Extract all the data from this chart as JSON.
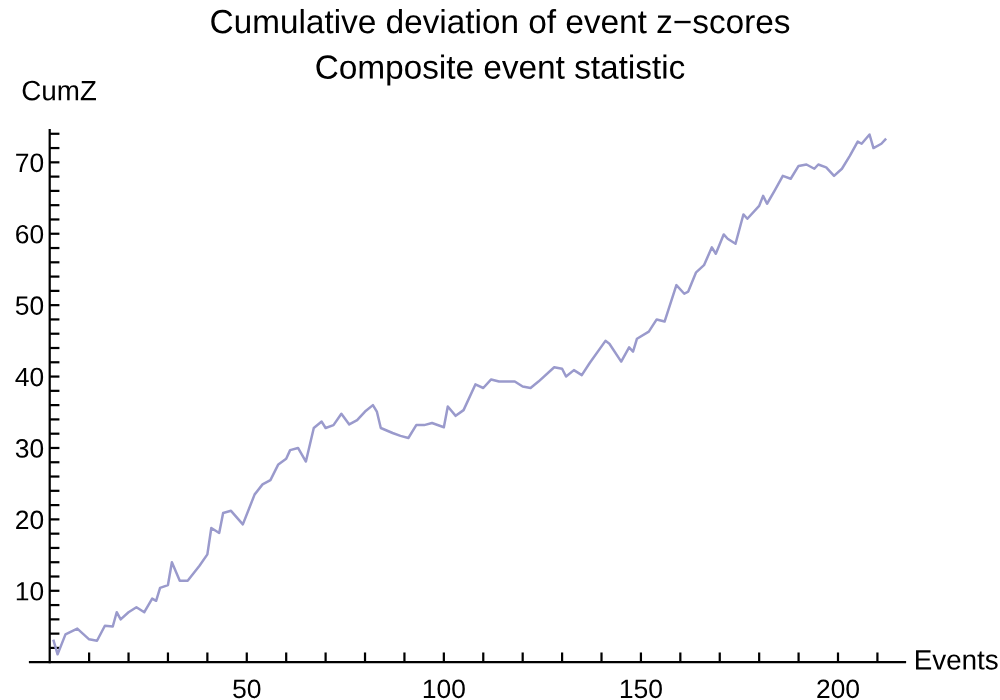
{
  "chart_data": {
    "type": "line",
    "title": "Cumulative deviation of event z−scores",
    "subtitle": "Composite event statistic",
    "xlabel": "Events",
    "ylabel": "CumZ",
    "series": [
      {
        "color": "#9a9acc",
        "x": [
          1,
          2,
          4,
          7,
          10,
          12,
          14,
          16,
          17,
          18,
          20,
          22,
          24,
          26,
          27,
          28,
          30,
          31,
          33,
          35,
          38,
          40,
          41,
          43,
          44,
          46,
          49,
          52,
          54,
          56,
          58,
          60,
          61,
          63,
          65,
          67,
          69,
          70,
          72,
          74,
          76,
          78,
          80,
          82,
          83,
          84,
          87,
          89,
          91,
          93,
          95,
          97,
          100,
          101,
          103,
          105,
          108,
          110,
          112,
          114,
          118,
          120,
          122,
          124,
          128,
          130,
          131,
          133,
          135,
          137,
          141,
          142,
          145,
          147,
          148,
          149,
          152,
          154,
          156,
          159,
          161,
          162,
          164,
          166,
          168,
          169,
          171,
          172,
          174,
          176,
          177,
          180,
          181,
          182,
          184,
          186,
          188,
          190,
          192,
          194,
          195,
          197,
          199,
          201,
          203,
          205,
          206,
          208,
          209,
          211,
          212
        ],
        "values": [
          3.0,
          1.1,
          3.9,
          4.7,
          3.2,
          3.0,
          5.1,
          5.0,
          7.0,
          6.0,
          7.0,
          7.7,
          7.0,
          8.9,
          8.6,
          10.4,
          10.8,
          14.0,
          11.4,
          11.4,
          13.5,
          15.1,
          18.8,
          18.1,
          20.9,
          21.2,
          19.3,
          23.5,
          24.9,
          25.5,
          27.7,
          28.5,
          29.7,
          30.0,
          28.1,
          32.8,
          33.7,
          32.8,
          33.2,
          34.8,
          33.3,
          33.9,
          35.1,
          36.0,
          35.1,
          32.8,
          32.1,
          31.7,
          31.4,
          33.2,
          33.2,
          33.5,
          32.9,
          35.8,
          34.5,
          35.3,
          38.9,
          38.4,
          39.6,
          39.3,
          39.3,
          38.6,
          38.4,
          39.3,
          41.3,
          41.1,
          40.0,
          40.9,
          40.2,
          41.9,
          45.0,
          44.6,
          42.1,
          44.1,
          43.5,
          45.3,
          46.3,
          48.0,
          47.7,
          52.8,
          51.6,
          51.9,
          54.6,
          55.6,
          58.1,
          57.2,
          59.9,
          59.3,
          58.6,
          62.7,
          62.1,
          63.9,
          65.3,
          64.2,
          66.1,
          68.1,
          67.7,
          69.5,
          69.7,
          69.1,
          69.7,
          69.3,
          68.1,
          69.1,
          70.9,
          72.9,
          72.6,
          73.9,
          72.0,
          72.6,
          73.2
        ]
      }
    ],
    "xlim": [
      -5,
      217
    ],
    "ylim": [
      0,
      74.5
    ],
    "xticks": [
      {
        "value": 10,
        "label": null
      },
      {
        "value": 20,
        "label": null
      },
      {
        "value": 30,
        "label": null
      },
      {
        "value": 40,
        "label": null
      },
      50,
      {
        "value": 60,
        "label": null
      },
      {
        "value": 70,
        "label": null
      },
      {
        "value": 80,
        "label": null
      },
      {
        "value": 90,
        "label": null
      },
      100,
      {
        "value": 110,
        "label": null
      },
      {
        "value": 120,
        "label": null
      },
      {
        "value": 130,
        "label": null
      },
      {
        "value": 140,
        "label": null
      },
      150,
      {
        "value": 160,
        "label": null
      },
      {
        "value": 170,
        "label": null
      },
      {
        "value": 180,
        "label": null
      },
      {
        "value": 190,
        "label": null
      },
      200,
      {
        "value": 210,
        "label": null
      }
    ],
    "yticks": [
      {
        "value": 2,
        "label": null
      },
      {
        "value": 4,
        "label": null
      },
      {
        "value": 6,
        "label": null
      },
      {
        "value": 8,
        "label": null
      },
      10,
      {
        "value": 12,
        "label": null
      },
      {
        "value": 14,
        "label": null
      },
      {
        "value": 16,
        "label": null
      },
      {
        "value": 18,
        "label": null
      },
      20,
      {
        "value": 22,
        "label": null
      },
      {
        "value": 24,
        "label": null
      },
      {
        "value": 26,
        "label": null
      },
      {
        "value": 28,
        "label": null
      },
      30,
      {
        "value": 32,
        "label": null
      },
      {
        "value": 34,
        "label": null
      },
      {
        "value": 36,
        "label": null
      },
      {
        "value": 38,
        "label": null
      },
      40,
      {
        "value": 42,
        "label": null
      },
      {
        "value": 44,
        "label": null
      },
      {
        "value": 46,
        "label": null
      },
      {
        "value": 48,
        "label": null
      },
      50,
      {
        "value": 52,
        "label": null
      },
      {
        "value": 54,
        "label": null
      },
      {
        "value": 56,
        "label": null
      },
      {
        "value": 58,
        "label": null
      },
      60,
      {
        "value": 62,
        "label": null
      },
      {
        "value": 64,
        "label": null
      },
      {
        "value": 66,
        "label": null
      },
      {
        "value": 68,
        "label": null
      },
      70,
      {
        "value": 72,
        "label": null
      },
      {
        "value": 74,
        "label": null
      }
    ],
    "grid": false,
    "marker": "none",
    "line_style": "solid"
  }
}
